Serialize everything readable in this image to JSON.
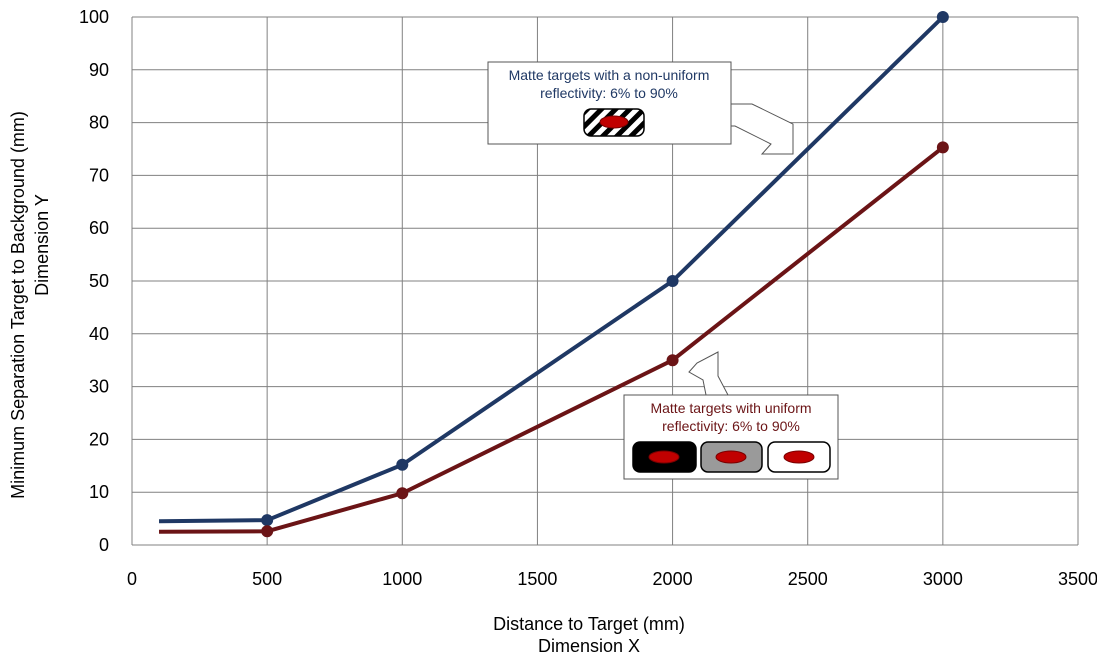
{
  "chart_data": {
    "type": "line",
    "xlabel": "Distance to Target (mm)",
    "xlabel2": "Dimension  X",
    "ylabel": "Minimum Separation Target to Background (mm)",
    "ylabel2": "Dimension  Y",
    "xlim": [
      0,
      3500
    ],
    "ylim": [
      0,
      100
    ],
    "xticks": [
      0,
      500,
      1000,
      1500,
      2000,
      2500,
      3000,
      3500
    ],
    "yticks": [
      0,
      10,
      20,
      30,
      40,
      50,
      60,
      70,
      80,
      90,
      100
    ],
    "grid": true,
    "series": [
      {
        "key": "non_uniform",
        "color": "#1f3864",
        "x": [
          100,
          500,
          1000,
          2000,
          3000
        ],
        "y": [
          4.5,
          4.7,
          15.2,
          50,
          100
        ],
        "markers": [
          false,
          true,
          true,
          true,
          true
        ]
      },
      {
        "key": "uniform",
        "color": "#6b1416",
        "x": [
          100,
          500,
          1000,
          2000,
          3000
        ],
        "y": [
          2.5,
          2.6,
          9.8,
          35,
          75.3
        ],
        "markers": [
          false,
          true,
          true,
          true,
          true
        ]
      }
    ],
    "annotations": {
      "non_uniform_line1": "Matte targets with a non-uniform",
      "non_uniform_line2": "reflectivity: 6% to 90%",
      "uniform_line1": "Matte targets with uniform",
      "uniform_line2": "reflectivity: 6% to 90%"
    }
  }
}
